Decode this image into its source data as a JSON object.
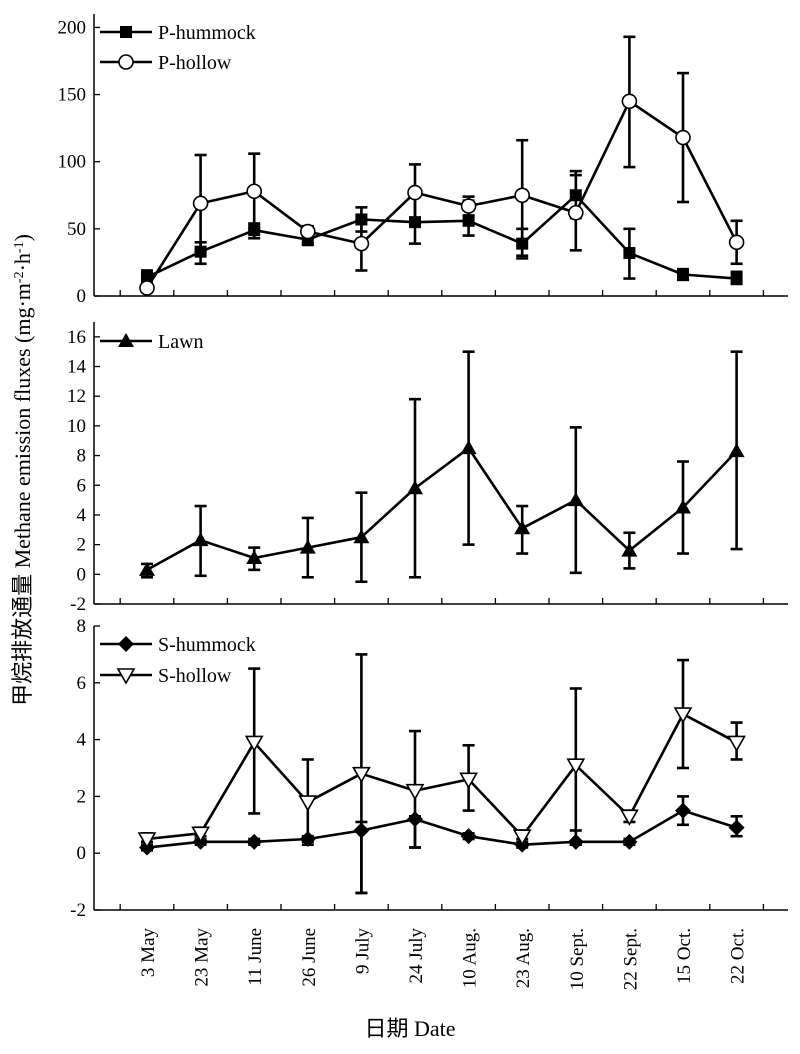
{
  "figure": {
    "ylabel": "甲烷排放通量 Methane emission fluxes (mg·m",
    "ylabel_sup1": "-2",
    "ylabel_mid": "·h",
    "ylabel_sup2": "-1",
    "ylabel_end": ")",
    "xlabel": "日期 Date"
  },
  "chart_data": [
    {
      "type": "line",
      "panel": "top",
      "x": [
        "3 May",
        "23 May",
        "11 June",
        "26 June",
        "9 July",
        "24 July",
        "10 Aug.",
        "23 Aug.",
        "10 Sept.",
        "22 Sept.",
        "15 Oct.",
        "22 Oct."
      ],
      "ylim": [
        0,
        210
      ],
      "yticks": [
        0,
        50,
        100,
        150,
        200
      ],
      "series": [
        {
          "name": "P-hummock",
          "marker": "square",
          "values": [
            14,
            33,
            49,
            42,
            57,
            55,
            56,
            39,
            75,
            32,
            16,
            13
          ],
          "err_low": [
            8,
            24,
            43,
            38,
            48,
            39,
            45,
            30,
            58,
            13,
            12,
            9
          ],
          "err_high": [
            19,
            40,
            54,
            47,
            66,
            75,
            71,
            50,
            93,
            50,
            20,
            18
          ]
        },
        {
          "name": "P-hollow",
          "marker": "circle-open",
          "values": [
            6,
            69,
            78,
            48,
            39,
            77,
            67,
            75,
            62,
            145,
            118,
            40
          ],
          "err_low": [
            4,
            33,
            50,
            44,
            19,
            55,
            60,
            28,
            34,
            96,
            70,
            24
          ],
          "err_high": [
            9,
            105,
            106,
            52,
            57,
            98,
            74,
            116,
            90,
            193,
            166,
            56
          ]
        }
      ],
      "legend": "top-left",
      "grid": false
    },
    {
      "type": "line",
      "panel": "middle",
      "x": [
        "3 May",
        "23 May",
        "11 June",
        "26 June",
        "9 July",
        "24 July",
        "10 Aug.",
        "23 Aug.",
        "10 Sept.",
        "22 Sept.",
        "15 Oct.",
        "22 Oct."
      ],
      "ylim": [
        -2,
        17
      ],
      "yticks": [
        -2,
        0,
        2,
        4,
        6,
        8,
        10,
        12,
        14,
        16
      ],
      "series": [
        {
          "name": "Lawn",
          "marker": "triangle-up-filled",
          "values": [
            0.3,
            2.3,
            1.1,
            1.8,
            2.5,
            5.8,
            8.5,
            3.1,
            5.0,
            1.6,
            4.5,
            8.3
          ],
          "err_low": [
            -0.2,
            -0.1,
            0.3,
            -0.2,
            -0.5,
            -0.2,
            2.0,
            1.4,
            0.1,
            0.4,
            1.4,
            1.7
          ],
          "err_high": [
            0.7,
            4.6,
            1.8,
            3.8,
            5.5,
            11.8,
            15.0,
            4.6,
            9.9,
            2.8,
            7.6,
            15.0
          ]
        }
      ],
      "legend": "top-left",
      "grid": false
    },
    {
      "type": "line",
      "panel": "bottom",
      "x": [
        "3 May",
        "23 May",
        "11 June",
        "26 June",
        "9 July",
        "24 July",
        "10 Aug.",
        "23 Aug.",
        "10 Sept.",
        "22 Sept.",
        "15 Oct.",
        "22 Oct."
      ],
      "ylim": [
        -2,
        8
      ],
      "yticks": [
        -2,
        0,
        2,
        4,
        6,
        8
      ],
      "series": [
        {
          "name": "S-hummock",
          "marker": "diamond-filled",
          "values": [
            0.2,
            0.4,
            0.4,
            0.5,
            0.8,
            1.2,
            0.6,
            0.3,
            0.4,
            0.4,
            1.5,
            0.9
          ],
          "err_low": [
            0.1,
            0.3,
            0.3,
            0.4,
            -1.4,
            0.2,
            0.5,
            0.2,
            0.3,
            0.3,
            1.0,
            0.6
          ],
          "err_high": [
            0.3,
            0.5,
            0.5,
            0.6,
            1.1,
            1.3,
            0.7,
            0.4,
            0.8,
            0.5,
            2.0,
            1.3
          ]
        },
        {
          "name": "S-hollow",
          "marker": "triangle-down-open",
          "values": [
            0.5,
            0.7,
            3.9,
            1.8,
            2.8,
            2.2,
            2.6,
            0.6,
            3.1,
            1.3,
            4.9,
            3.9
          ],
          "err_low": [
            0.4,
            0.6,
            1.4,
            0.3,
            -1.4,
            0.2,
            1.5,
            0.5,
            0.3,
            1.1,
            3.0,
            3.3
          ],
          "err_high": [
            0.7,
            0.9,
            6.5,
            3.3,
            7.0,
            4.3,
            3.8,
            0.8,
            5.8,
            1.5,
            6.8,
            4.6
          ]
        }
      ],
      "legend": "top-left",
      "grid": false
    }
  ]
}
